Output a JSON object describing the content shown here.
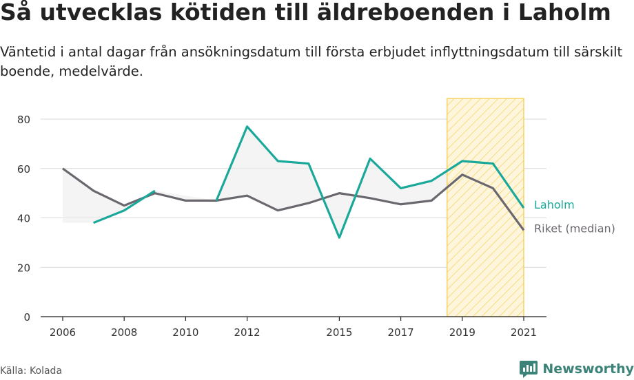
{
  "title": "Så utvecklas kötiden till äldreboenden i Laholm",
  "subtitle": "Väntetid i antal dagar från ansökningsdatum till första erbjudet inflyttningsdatum till särskilt boende, medelvärde.",
  "source": "Källa: Kolada",
  "brand": "Newsworthy",
  "colors": {
    "laholm": "#1aa89a",
    "riket": "#6b676e",
    "highlight": "#f5c842",
    "fill": "#ebebeb",
    "grid": "#d9d9d9",
    "axis": "#222222"
  },
  "chart_data": {
    "type": "line",
    "title": "Så utvecklas kötiden till äldreboenden i Laholm",
    "xlabel": "",
    "ylabel": "",
    "x_ticks": [
      "2006",
      "2008",
      "2010",
      "2012",
      "2015",
      "2017",
      "2019",
      "2021"
    ],
    "y_ticks": [
      "0",
      "20",
      "40",
      "60",
      "80"
    ],
    "xlim": [
      2006,
      2021
    ],
    "ylim": [
      0,
      80
    ],
    "grid": true,
    "highlight_range": [
      2019,
      2021
    ],
    "series": [
      {
        "name": "Laholm",
        "color": "#1aa89a",
        "points": [
          [
            2007,
            38
          ],
          [
            2008,
            43
          ],
          [
            2009,
            51
          ],
          [
            2011,
            47
          ],
          [
            2012,
            77
          ],
          [
            2013,
            63
          ],
          [
            2014,
            62
          ],
          [
            2015,
            32
          ],
          [
            2016,
            64
          ],
          [
            2017,
            52
          ],
          [
            2018,
            55
          ],
          [
            2019,
            63
          ],
          [
            2020,
            62
          ],
          [
            2021,
            44
          ]
        ],
        "segments": [
          [
            2007,
            2009
          ],
          [
            2011,
            2021
          ]
        ]
      },
      {
        "name": "Riket (median)",
        "color": "#6b676e",
        "points": [
          [
            2006,
            60
          ],
          [
            2007,
            51
          ],
          [
            2008,
            45
          ],
          [
            2009,
            50
          ],
          [
            2010,
            47
          ],
          [
            2011,
            47
          ],
          [
            2012,
            49
          ],
          [
            2013,
            43
          ],
          [
            2014,
            46
          ],
          [
            2015,
            50
          ],
          [
            2016,
            48
          ],
          [
            2017,
            45.5
          ],
          [
            2018,
            47
          ],
          [
            2019,
            57.5
          ],
          [
            2020,
            52
          ],
          [
            2021,
            35
          ]
        ],
        "segments": [
          [
            2006,
            2021
          ]
        ]
      }
    ]
  }
}
